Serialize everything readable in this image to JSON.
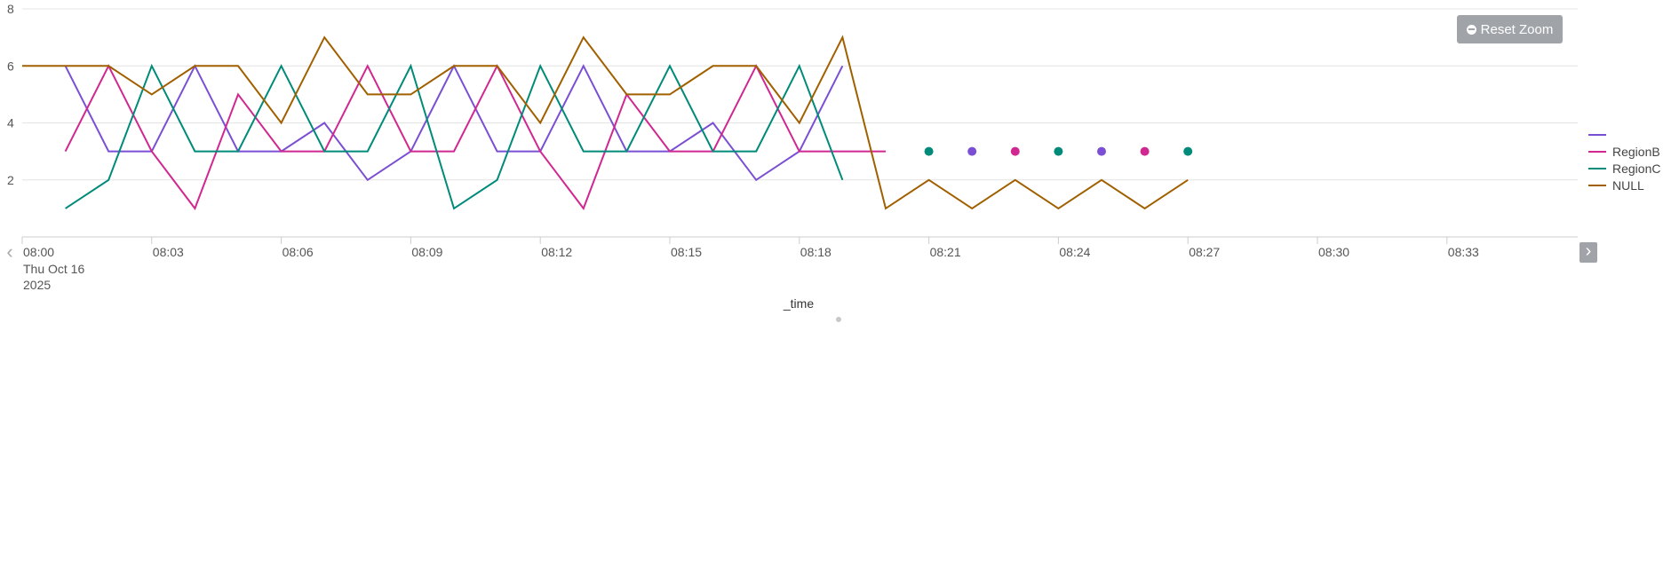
{
  "chart_data": {
    "type": "line",
    "xlabel": "_time",
    "ylabel": "",
    "ylim": [
      0,
      8
    ],
    "yticks": [
      2,
      4,
      6,
      8
    ],
    "xlim_minutes": [
      0,
      35.8
    ],
    "x_ticks": [
      {
        "minute": 0,
        "label": "08:00",
        "sublabel1": "Thu Oct 16",
        "sublabel2": "2025"
      },
      {
        "minute": 3,
        "label": "08:03"
      },
      {
        "minute": 6,
        "label": "08:06"
      },
      {
        "minute": 9,
        "label": "08:09"
      },
      {
        "minute": 12,
        "label": "08:12"
      },
      {
        "minute": 15,
        "label": "08:15"
      },
      {
        "minute": 18,
        "label": "08:18"
      },
      {
        "minute": 21,
        "label": "08:21"
      },
      {
        "minute": 24,
        "label": "08:24"
      },
      {
        "minute": 27,
        "label": "08:27"
      },
      {
        "minute": 30,
        "label": "08:30"
      },
      {
        "minute": 33,
        "label": "08:33"
      }
    ],
    "grid": true,
    "legend_position": "right",
    "series": [
      {
        "name": "",
        "color": "#7b4fd3",
        "points": [
          [
            1,
            6
          ],
          [
            2,
            3
          ],
          [
            3,
            3
          ],
          [
            4,
            6
          ],
          [
            5,
            3
          ],
          [
            6,
            3
          ],
          [
            7,
            4
          ],
          [
            8,
            2
          ],
          [
            9,
            3
          ],
          [
            10,
            6
          ],
          [
            11,
            3
          ],
          [
            12,
            3
          ],
          [
            13,
            6
          ],
          [
            14,
            3
          ],
          [
            15,
            3
          ],
          [
            16,
            4
          ],
          [
            17,
            2
          ],
          [
            18,
            3
          ],
          [
            19,
            6
          ]
        ],
        "dots": [
          [
            22,
            3
          ],
          [
            25,
            3
          ]
        ]
      },
      {
        "name": "RegionB",
        "color": "#d02890",
        "points": [
          [
            1,
            3
          ],
          [
            2,
            6
          ],
          [
            3,
            3
          ],
          [
            4,
            1
          ],
          [
            5,
            5
          ],
          [
            6,
            3
          ],
          [
            7,
            3
          ],
          [
            8,
            6
          ],
          [
            9,
            3
          ],
          [
            10,
            3
          ],
          [
            11,
            6
          ],
          [
            12,
            3
          ],
          [
            13,
            1
          ],
          [
            14,
            5
          ],
          [
            15,
            3
          ],
          [
            16,
            3
          ],
          [
            17,
            6
          ],
          [
            18,
            3
          ],
          [
            19,
            3
          ],
          [
            20,
            3
          ]
        ],
        "dots": [
          [
            23,
            3
          ],
          [
            26,
            3
          ]
        ]
      },
      {
        "name": "RegionC",
        "color": "#008a7a",
        "points": [
          [
            1,
            1
          ],
          [
            2,
            2
          ],
          [
            3,
            6
          ],
          [
            4,
            3
          ],
          [
            5,
            3
          ],
          [
            6,
            6
          ],
          [
            7,
            3
          ],
          [
            8,
            3
          ],
          [
            9,
            6
          ],
          [
            10,
            1
          ],
          [
            11,
            2
          ],
          [
            12,
            6
          ],
          [
            13,
            3
          ],
          [
            14,
            3
          ],
          [
            15,
            6
          ],
          [
            16,
            3
          ],
          [
            17,
            3
          ],
          [
            18,
            6
          ],
          [
            19,
            2
          ]
        ],
        "dots": [
          [
            21,
            3
          ],
          [
            24,
            3
          ],
          [
            27,
            3
          ]
        ]
      },
      {
        "name": "NULL",
        "color": "#a06000",
        "points": [
          [
            0,
            6
          ],
          [
            1,
            6
          ],
          [
            2,
            6
          ],
          [
            3,
            5
          ],
          [
            4,
            6
          ],
          [
            5,
            6
          ],
          [
            6,
            4
          ],
          [
            7,
            7
          ],
          [
            8,
            5
          ],
          [
            9,
            5
          ],
          [
            10,
            6
          ],
          [
            11,
            6
          ],
          [
            12,
            4
          ],
          [
            13,
            7
          ],
          [
            14,
            5
          ],
          [
            15,
            5
          ],
          [
            16,
            6
          ],
          [
            17,
            6
          ],
          [
            18,
            4
          ],
          [
            19,
            7
          ],
          [
            20,
            1
          ],
          [
            21,
            2
          ],
          [
            22,
            1
          ],
          [
            23,
            2
          ],
          [
            24,
            1
          ],
          [
            25,
            2
          ],
          [
            26,
            1
          ],
          [
            27,
            2
          ]
        ],
        "dots": []
      }
    ]
  },
  "toolbar": {
    "reset_zoom_label": "Reset Zoom",
    "prev_label": "‹",
    "next_label": "›"
  }
}
